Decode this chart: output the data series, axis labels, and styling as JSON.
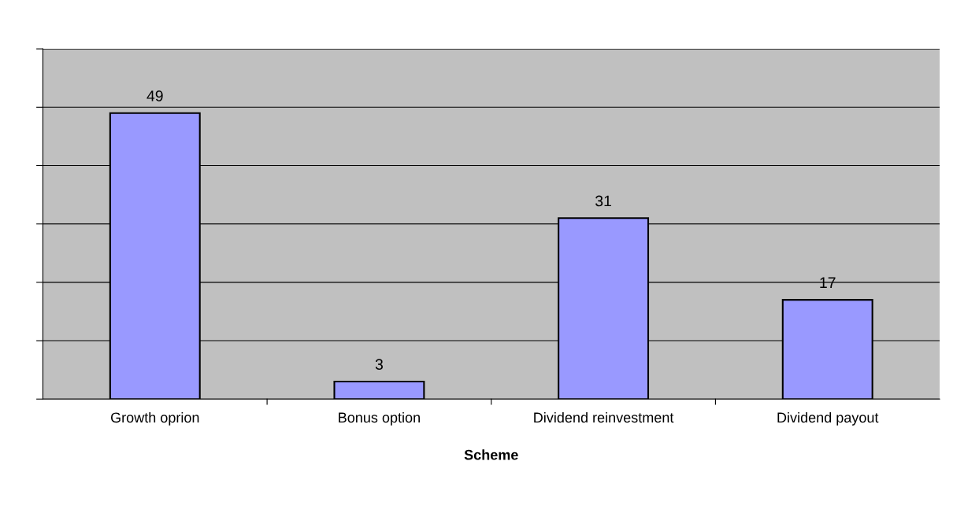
{
  "chart_data": {
    "type": "bar",
    "xlabel": "Scheme",
    "categories": [
      "Growth oprion",
      "Bonus option",
      "Dividend reinvestment",
      "Dividend payout"
    ],
    "values": [
      49,
      3,
      31,
      17
    ],
    "color": "#9999ff",
    "ylim": [
      0,
      60
    ],
    "yticks": [
      {
        "value": 0,
        "label": null
      },
      {
        "value": 10,
        "label": null
      },
      {
        "value": 20,
        "label": null
      },
      {
        "value": 30,
        "label": null
      },
      {
        "value": 40,
        "label": null
      },
      {
        "value": 50,
        "label": null
      },
      {
        "value": 60,
        "label": null
      }
    ],
    "grid": "y",
    "value_labels": [
      "49",
      "3",
      "31",
      "17"
    ]
  }
}
